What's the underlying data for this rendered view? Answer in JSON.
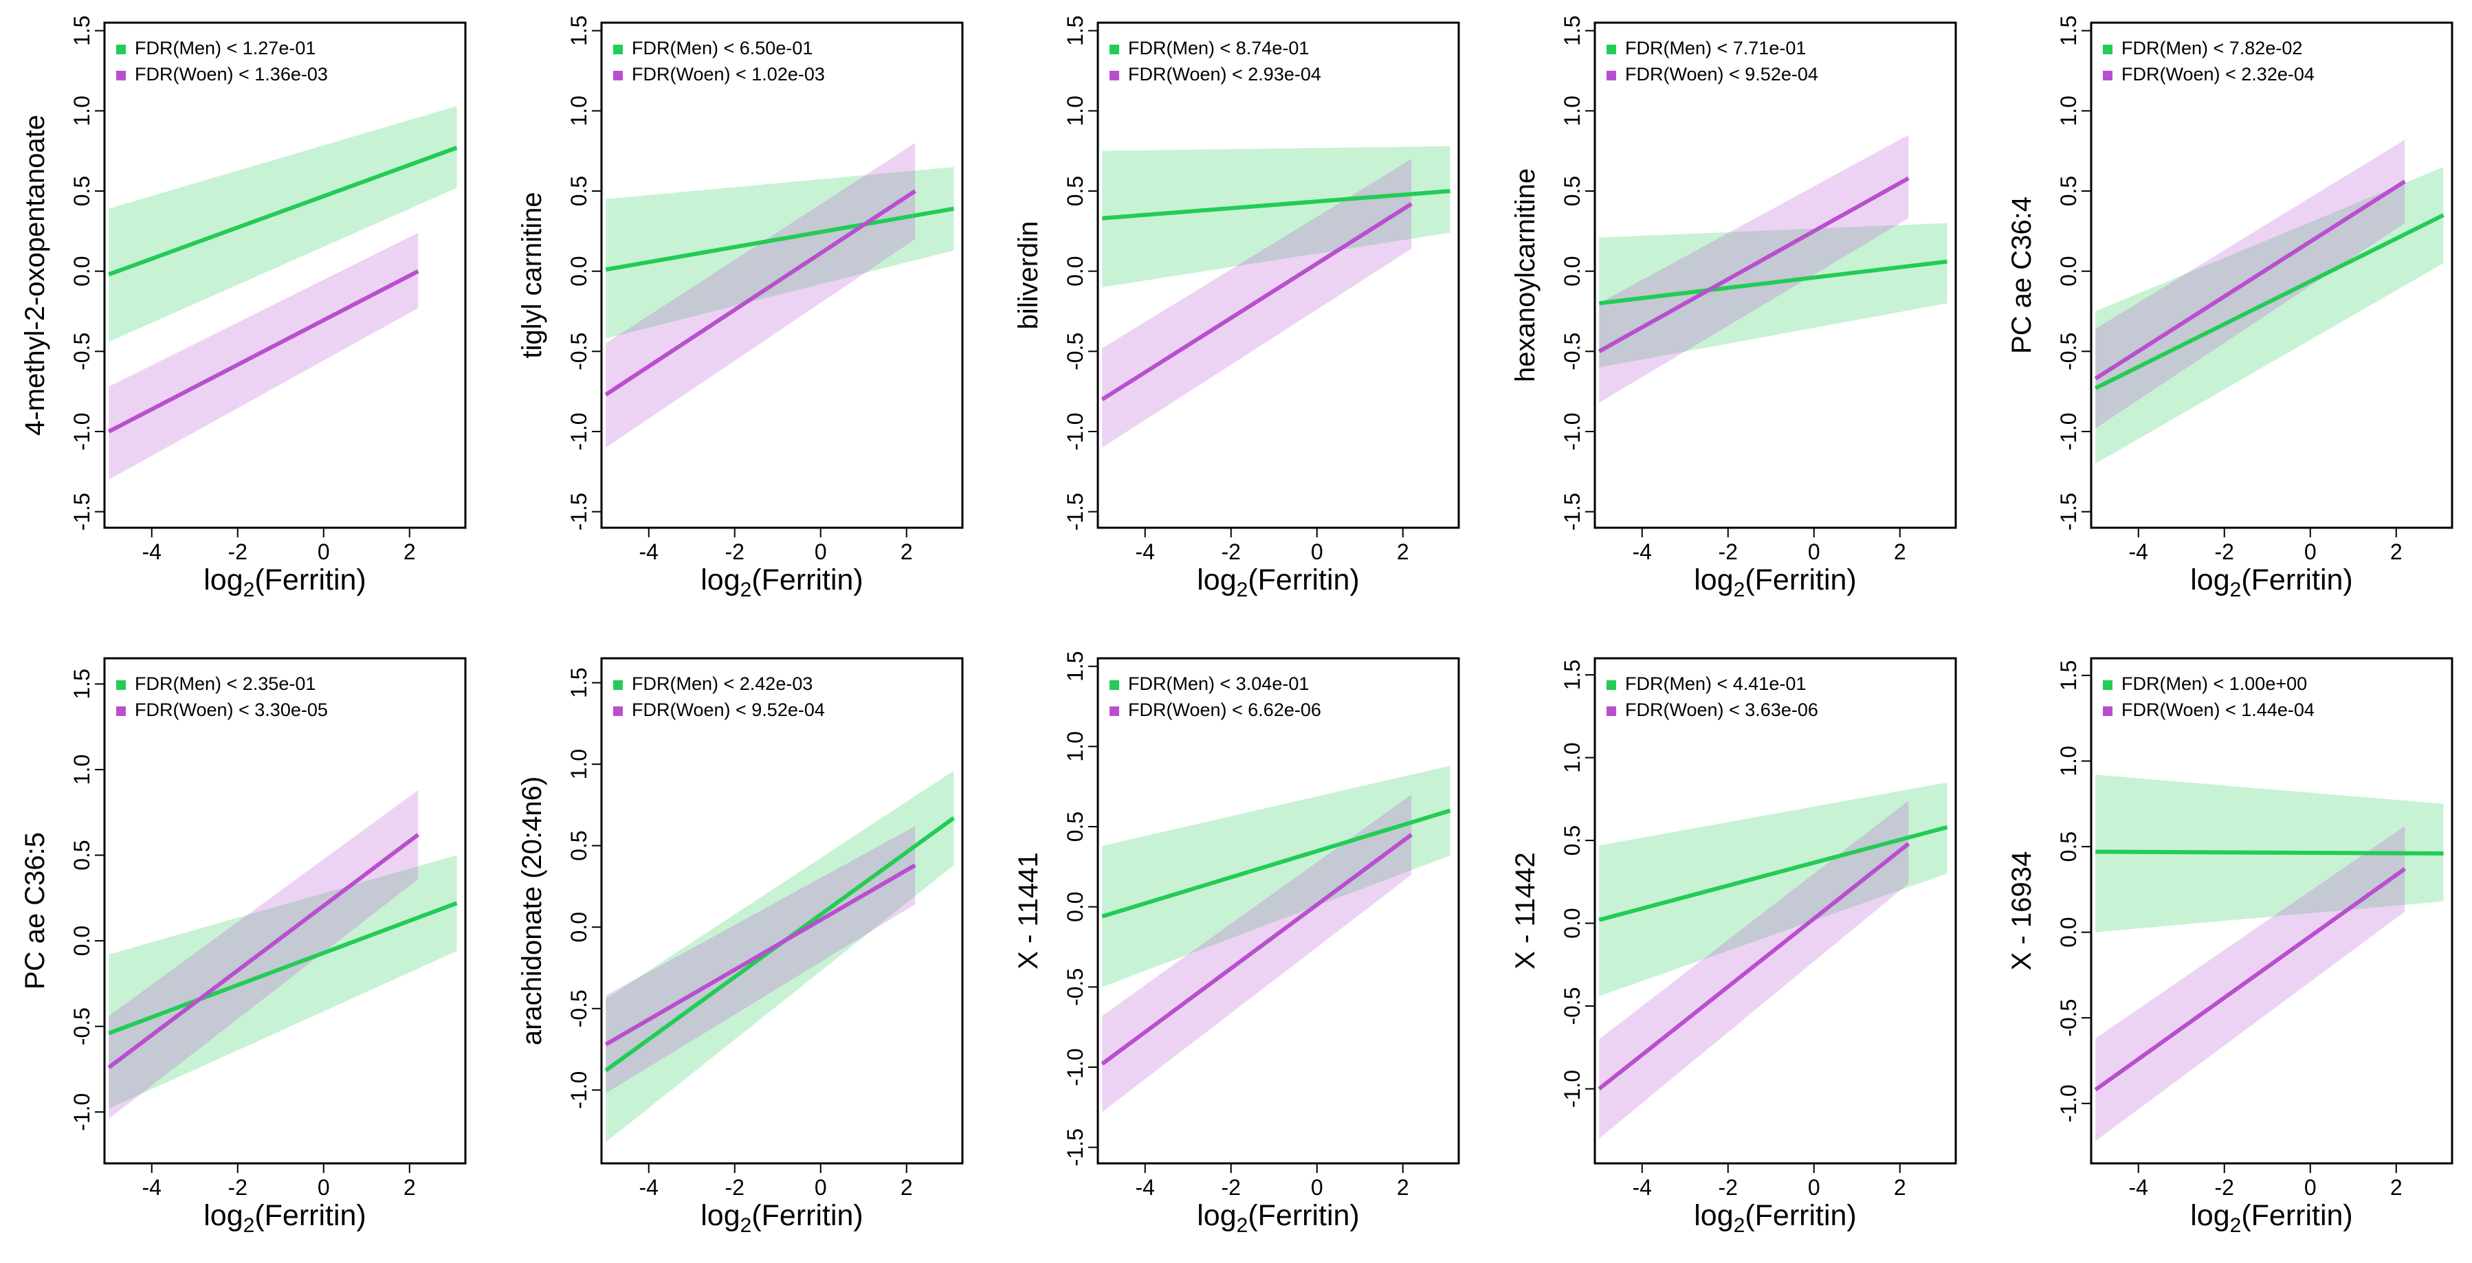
{
  "chart_data": [
    {
      "type": "line",
      "ylabel": "4-methyl-2-oxopentanoate",
      "xlabel": "log2(Ferritin)",
      "xlim": [
        -5.1,
        3.3
      ],
      "ylim": [
        -1.6,
        1.55
      ],
      "xticks": [
        "-4",
        "-2",
        "0",
        "2"
      ],
      "yticks": [
        "-1.5",
        "-1.0",
        "-0.5",
        "0.0",
        "0.5",
        "1.0",
        "1.5"
      ],
      "legend": "top-left",
      "series": [
        {
          "name": "FDR(Men) < 1.27e-01",
          "color": "#22cc55",
          "x": [
            -5,
            3.1
          ],
          "y": [
            -0.02,
            0.77
          ],
          "ci_lo": [
            -0.44,
            0.52
          ],
          "ci_hi": [
            0.39,
            1.03
          ]
        },
        {
          "name": "FDR(Woen) < 1.36e-03",
          "color": "#b94fcf",
          "x": [
            -5,
            2.2
          ],
          "y": [
            -1.0,
            0.0
          ],
          "ci_lo": [
            -1.3,
            -0.23
          ],
          "ci_hi": [
            -0.72,
            0.24
          ]
        }
      ]
    },
    {
      "type": "line",
      "ylabel": "tiglyl carnitine",
      "xlabel": "log2(Ferritin)",
      "xlim": [
        -5.1,
        3.3
      ],
      "ylim": [
        -1.6,
        1.55
      ],
      "xticks": [
        "-4",
        "-2",
        "0",
        "2"
      ],
      "yticks": [
        "-1.5",
        "-1.0",
        "-0.5",
        "0.0",
        "0.5",
        "1.0",
        "1.5"
      ],
      "legend": "top-left",
      "series": [
        {
          "name": "FDR(Men) < 6.50e-01",
          "color": "#22cc55",
          "x": [
            -5,
            3.1
          ],
          "y": [
            0.01,
            0.39
          ],
          "ci_lo": [
            -0.42,
            0.13
          ],
          "ci_hi": [
            0.45,
            0.65
          ]
        },
        {
          "name": "FDR(Woen) < 1.02e-03",
          "color": "#b94fcf",
          "x": [
            -5,
            2.2
          ],
          "y": [
            -0.77,
            0.5
          ],
          "ci_lo": [
            -1.1,
            0.2
          ],
          "ci_hi": [
            -0.45,
            0.8
          ]
        }
      ]
    },
    {
      "type": "line",
      "ylabel": "biliverdin",
      "xlabel": "log2(Ferritin)",
      "xlim": [
        -5.1,
        3.3
      ],
      "ylim": [
        -1.6,
        1.55
      ],
      "xticks": [
        "-4",
        "-2",
        "0",
        "2"
      ],
      "yticks": [
        "-1.5",
        "-1.0",
        "-0.5",
        "0.0",
        "0.5",
        "1.0",
        "1.5"
      ],
      "legend": "top-left",
      "series": [
        {
          "name": "FDR(Men) < 8.74e-01",
          "color": "#22cc55",
          "x": [
            -5,
            3.1
          ],
          "y": [
            0.33,
            0.5
          ],
          "ci_lo": [
            -0.1,
            0.24
          ],
          "ci_hi": [
            0.75,
            0.78
          ]
        },
        {
          "name": "FDR(Woen) < 2.93e-04",
          "color": "#b94fcf",
          "x": [
            -5,
            2.2
          ],
          "y": [
            -0.8,
            0.42
          ],
          "ci_lo": [
            -1.1,
            0.14
          ],
          "ci_hi": [
            -0.48,
            0.7
          ]
        }
      ]
    },
    {
      "type": "line",
      "ylabel": "hexanoylcarnitine",
      "xlabel": "log2(Ferritin)",
      "xlim": [
        -5.1,
        3.3
      ],
      "ylim": [
        -1.6,
        1.55
      ],
      "xticks": [
        "-4",
        "-2",
        "0",
        "2"
      ],
      "yticks": [
        "-1.5",
        "-1.0",
        "-0.5",
        "0.0",
        "0.5",
        "1.0",
        "1.5"
      ],
      "legend": "top-left",
      "series": [
        {
          "name": "FDR(Men) < 7.71e-01",
          "color": "#22cc55",
          "x": [
            -5,
            3.1
          ],
          "y": [
            -0.2,
            0.06
          ],
          "ci_lo": [
            -0.6,
            -0.2
          ],
          "ci_hi": [
            0.21,
            0.3
          ]
        },
        {
          "name": "FDR(Woen) < 9.52e-04",
          "color": "#b94fcf",
          "x": [
            -5,
            2.2
          ],
          "y": [
            -0.5,
            0.58
          ],
          "ci_lo": [
            -0.82,
            0.33
          ],
          "ci_hi": [
            -0.2,
            0.85
          ]
        }
      ]
    },
    {
      "type": "line",
      "ylabel": "PC ae C36:4",
      "xlabel": "log2(Ferritin)",
      "xlim": [
        -5.1,
        3.3
      ],
      "ylim": [
        -1.6,
        1.55
      ],
      "xticks": [
        "-4",
        "-2",
        "0",
        "2"
      ],
      "yticks": [
        "-1.5",
        "-1.0",
        "-0.5",
        "0.0",
        "0.5",
        "1.0",
        "1.5"
      ],
      "legend": "top-left",
      "series": [
        {
          "name": "FDR(Men) < 7.82e-02",
          "color": "#22cc55",
          "x": [
            -5,
            3.1
          ],
          "y": [
            -0.73,
            0.35
          ],
          "ci_lo": [
            -1.2,
            0.05
          ],
          "ci_hi": [
            -0.25,
            0.65
          ]
        },
        {
          "name": "FDR(Woen) < 2.32e-04",
          "color": "#b94fcf",
          "x": [
            -5,
            2.2
          ],
          "y": [
            -0.67,
            0.56
          ],
          "ci_lo": [
            -0.98,
            0.3
          ],
          "ci_hi": [
            -0.36,
            0.82
          ]
        }
      ]
    },
    {
      "type": "line",
      "ylabel": "PC ae C36:5",
      "xlabel": "log2(Ferritin)",
      "xlim": [
        -5.1,
        3.3
      ],
      "ylim": [
        -1.3,
        1.65
      ],
      "xticks": [
        "-4",
        "-2",
        "0",
        "2"
      ],
      "yticks": [
        "-1.0",
        "-0.5",
        "0.0",
        "0.5",
        "1.0",
        "1.5"
      ],
      "legend": "top-left",
      "series": [
        {
          "name": "FDR(Men) < 2.35e-01",
          "color": "#22cc55",
          "x": [
            -5,
            3.1
          ],
          "y": [
            -0.54,
            0.22
          ],
          "ci_lo": [
            -0.98,
            -0.06
          ],
          "ci_hi": [
            -0.08,
            0.5
          ]
        },
        {
          "name": "FDR(Woen) < 3.30e-05",
          "color": "#b94fcf",
          "x": [
            -5,
            2.2
          ],
          "y": [
            -0.74,
            0.62
          ],
          "ci_lo": [
            -1.04,
            0.36
          ],
          "ci_hi": [
            -0.44,
            0.88
          ]
        }
      ]
    },
    {
      "type": "line",
      "ylabel": "arachidonate (20:4n6)",
      "xlabel": "log2(Ferritin)",
      "xlim": [
        -5.1,
        3.3
      ],
      "ylim": [
        -1.45,
        1.65
      ],
      "xticks": [
        "-4",
        "-2",
        "0",
        "2"
      ],
      "yticks": [
        "-1.0",
        "-0.5",
        "0.0",
        "0.5",
        "1.0",
        "1.5"
      ],
      "legend": "top-left",
      "series": [
        {
          "name": "FDR(Men) < 2.42e-03",
          "color": "#22cc55",
          "x": [
            -5,
            3.1
          ],
          "y": [
            -0.88,
            0.67
          ],
          "ci_lo": [
            -1.32,
            0.38
          ],
          "ci_hi": [
            -0.44,
            0.96
          ]
        },
        {
          "name": "FDR(Woen) < 9.52e-04",
          "color": "#b94fcf",
          "x": [
            -5,
            2.2
          ],
          "y": [
            -0.72,
            0.38
          ],
          "ci_lo": [
            -1.02,
            0.14
          ],
          "ci_hi": [
            -0.42,
            0.62
          ]
        }
      ]
    },
    {
      "type": "line",
      "ylabel": "X - 11441",
      "xlabel": "log2(Ferritin)",
      "xlim": [
        -5.1,
        3.3
      ],
      "ylim": [
        -1.6,
        1.55
      ],
      "xticks": [
        "-4",
        "-2",
        "0",
        "2"
      ],
      "yticks": [
        "-1.5",
        "-1.0",
        "-0.5",
        "0.0",
        "0.5",
        "1.0",
        "1.5"
      ],
      "legend": "top-left",
      "series": [
        {
          "name": "FDR(Men) < 3.04e-01",
          "color": "#22cc55",
          "x": [
            -5,
            3.1
          ],
          "y": [
            -0.06,
            0.6
          ],
          "ci_lo": [
            -0.5,
            0.32
          ],
          "ci_hi": [
            0.38,
            0.88
          ]
        },
        {
          "name": "FDR(Woen) < 6.62e-06",
          "color": "#b94fcf",
          "x": [
            -5,
            2.2
          ],
          "y": [
            -0.98,
            0.45
          ],
          "ci_lo": [
            -1.28,
            0.2
          ],
          "ci_hi": [
            -0.68,
            0.7
          ]
        }
      ]
    },
    {
      "type": "line",
      "ylabel": "X - 11442",
      "xlabel": "log2(Ferritin)",
      "xlim": [
        -5.1,
        3.3
      ],
      "ylim": [
        -1.45,
        1.6
      ],
      "xticks": [
        "-4",
        "-2",
        "0",
        "2"
      ],
      "yticks": [
        "-1.0",
        "-0.5",
        "0.0",
        "0.5",
        "1.0",
        "1.5"
      ],
      "legend": "top-left",
      "series": [
        {
          "name": "FDR(Men) < 4.41e-01",
          "color": "#22cc55",
          "x": [
            -5,
            3.1
          ],
          "y": [
            0.02,
            0.58
          ],
          "ci_lo": [
            -0.44,
            0.3
          ],
          "ci_hi": [
            0.47,
            0.85
          ]
        },
        {
          "name": "FDR(Woen) < 3.63e-06",
          "color": "#b94fcf",
          "x": [
            -5,
            2.2
          ],
          "y": [
            -1.0,
            0.48
          ],
          "ci_lo": [
            -1.3,
            0.24
          ],
          "ci_hi": [
            -0.7,
            0.74
          ]
        }
      ]
    },
    {
      "type": "line",
      "ylabel": "X - 16934",
      "xlabel": "log2(Ferritin)",
      "xlim": [
        -5.1,
        3.3
      ],
      "ylim": [
        -1.35,
        1.6
      ],
      "xticks": [
        "-4",
        "-2",
        "0",
        "2"
      ],
      "yticks": [
        "-1.0",
        "-0.5",
        "0.0",
        "0.5",
        "1.0",
        "1.5"
      ],
      "legend": "top-left",
      "series": [
        {
          "name": "FDR(Men) < 1.00e+00",
          "color": "#22cc55",
          "x": [
            -5,
            3.1
          ],
          "y": [
            0.47,
            0.46
          ],
          "ci_lo": [
            0.0,
            0.18
          ],
          "ci_hi": [
            0.92,
            0.75
          ]
        },
        {
          "name": "FDR(Woen) < 1.44e-04",
          "color": "#b94fcf",
          "x": [
            -5,
            2.2
          ],
          "y": [
            -0.92,
            0.37
          ],
          "ci_lo": [
            -1.22,
            0.12
          ],
          "ci_hi": [
            -0.62,
            0.62
          ]
        }
      ]
    }
  ]
}
